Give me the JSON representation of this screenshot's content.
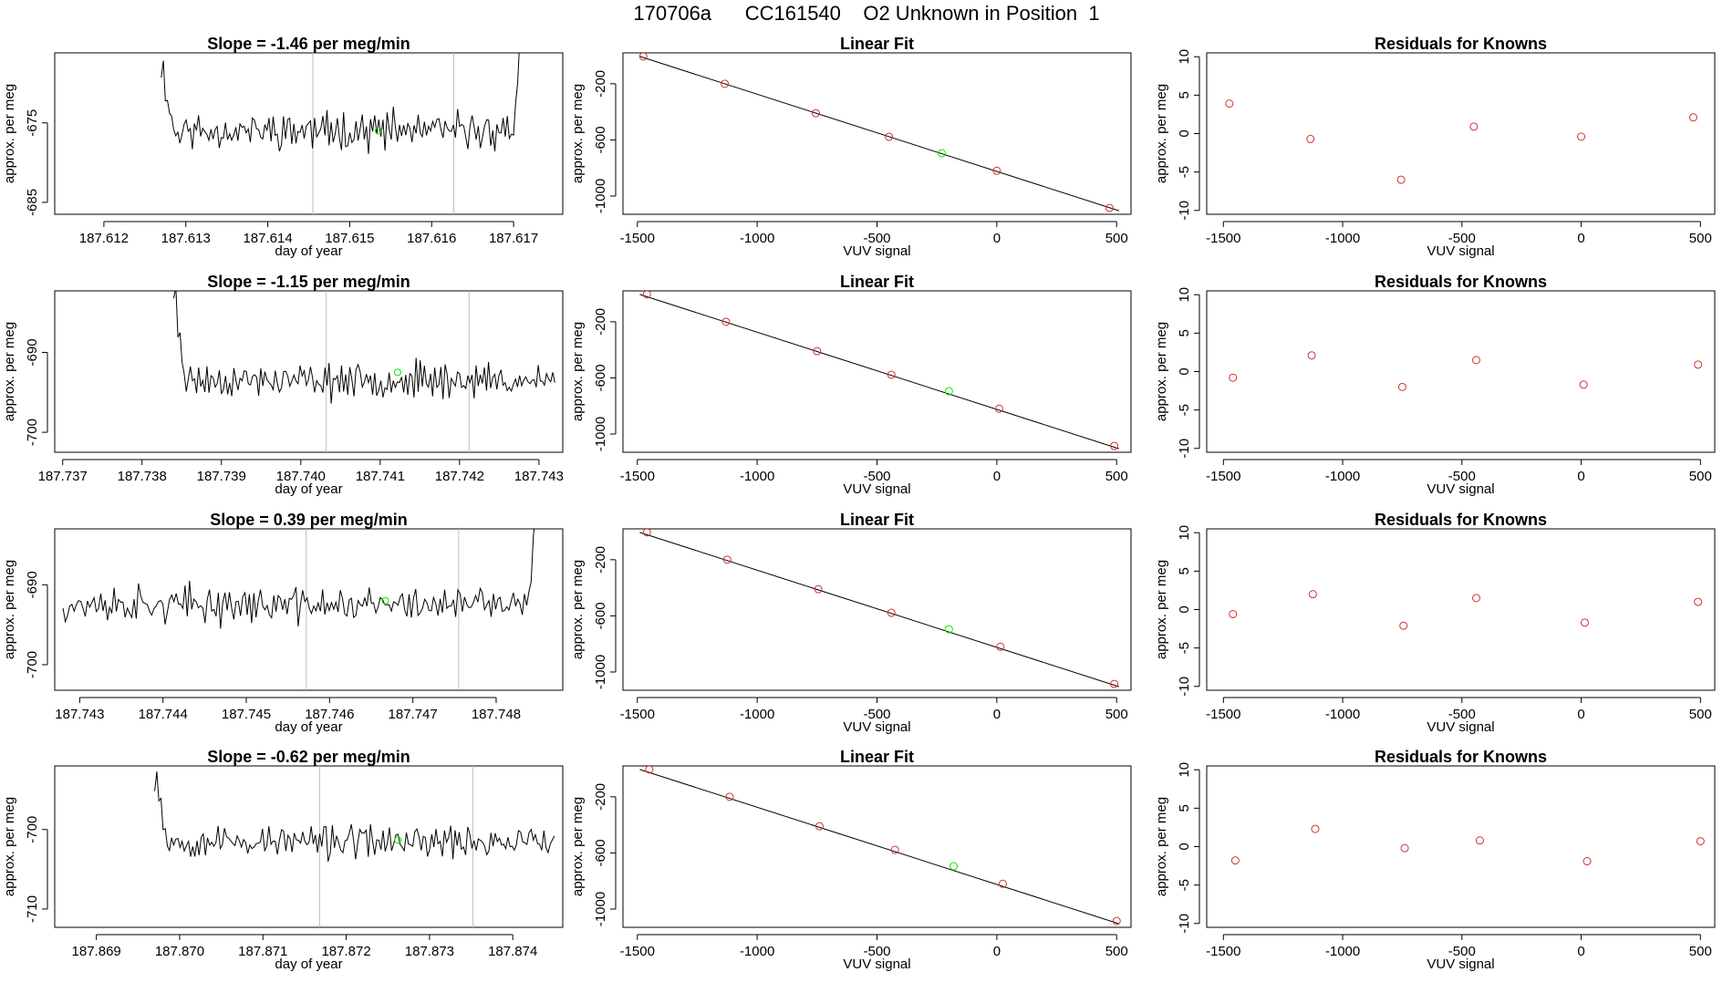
{
  "title": "170706a      CC161540    O2 Unknown in Position  1",
  "colors": {
    "known_point": "#cd3333",
    "unknown_point": "#00ee00",
    "cutoff_line": "#bebebe",
    "line": "#000000"
  },
  "chart_data": [
    {
      "type": "line",
      "title": "Slope =  -1.46  per meg/min",
      "xlabel": "day of year",
      "ylabel": "approx. per meg",
      "xlim": [
        187.6114,
        187.6176
      ],
      "ylim": [
        -686.5,
        -666.2
      ],
      "xticks": [
        187.612,
        187.613,
        187.614,
        187.615,
        187.616,
        187.617
      ],
      "xtick_labels": [
        "187.612",
        "187.613",
        "187.614",
        "187.615",
        "187.616",
        "187.617"
      ],
      "yticks": [
        -675,
        -685
      ],
      "ytick_labels": [
        "-675",
        "-685"
      ],
      "vlines": [
        187.61455,
        187.61627
      ],
      "unknown_marker": {
        "x": 187.61535,
        "y": -676.0
      },
      "series": [
        {
          "x_start": 187.6127,
          "x_end": 187.6171,
          "n": 175,
          "base": -676.0,
          "amp": 2.9,
          "seed": 11,
          "start_rise": 10,
          "end_rise": 14
        }
      ]
    },
    {
      "type": "scatter",
      "title": "Linear Fit",
      "xlabel": "VUV signal",
      "ylabel": "approx. per meg",
      "xlim": [
        -1560,
        560
      ],
      "ylim": [
        -1130,
        20
      ],
      "xticks": [
        -1500,
        -1000,
        -500,
        0,
        500
      ],
      "xtick_labels": [
        "-1500",
        "-1000",
        "-500",
        "0",
        "500"
      ],
      "yticks": [
        -200,
        -600,
        -1000
      ],
      "ytick_labels": [
        "-200",
        "-600",
        "-1000"
      ],
      "fit_line": {
        "x": [
          -1490,
          510
        ],
        "y": [
          -5,
          -1105
        ]
      },
      "knowns": {
        "x": [
          -1475,
          -1135,
          -755,
          -450,
          0,
          470
        ],
        "y": [
          -5,
          -200,
          -410,
          -578,
          -820,
          -1085
        ]
      },
      "unknown": {
        "x": -230,
        "y": -695
      }
    },
    {
      "type": "scatter",
      "title": "Residuals for Knowns",
      "xlabel": "VUV signal",
      "ylabel": "approx. per meg",
      "xlim": [
        -1570,
        560
      ],
      "ylim": [
        -10.5,
        10.5
      ],
      "xticks": [
        -1500,
        -1000,
        -500,
        0,
        500
      ],
      "xtick_labels": [
        "-1500",
        "-1000",
        "-500",
        "0",
        "500"
      ],
      "yticks": [
        10,
        5,
        0,
        -5,
        -10
      ],
      "ytick_labels": [
        "10",
        "5",
        "0",
        "-5",
        "-10"
      ],
      "residuals": {
        "x": [
          -1475,
          -1135,
          -755,
          -450,
          0,
          470
        ],
        "y": [
          3.9,
          -0.7,
          -6.0,
          0.9,
          -0.4,
          2.1
        ]
      }
    },
    {
      "type": "line",
      "title": "Slope =  -1.15  per meg/min",
      "xlabel": "day of year",
      "ylabel": "approx. per meg",
      "xlim": [
        187.7369,
        187.7433
      ],
      "ylim": [
        -702.5,
        -682.3
      ],
      "xticks": [
        187.737,
        187.738,
        187.739,
        187.74,
        187.741,
        187.742,
        187.743
      ],
      "xtick_labels": [
        "187.737",
        "187.738",
        "187.739",
        "187.740",
        "187.741",
        "187.742",
        "187.743"
      ],
      "yticks": [
        -690,
        -700
      ],
      "ytick_labels": [
        "-690",
        "-700"
      ],
      "vlines": [
        187.74032,
        187.74212
      ],
      "unknown_marker": {
        "x": 187.74122,
        "y": -692.5
      },
      "series": [
        {
          "x_start": 187.7384,
          "x_end": 187.7432,
          "n": 185,
          "base": -693.5,
          "amp": 2.5,
          "seed": 23,
          "start_rise": 12,
          "end_rise": 0
        }
      ]
    },
    {
      "type": "scatter",
      "title": "Linear Fit",
      "xlabel": "VUV signal",
      "ylabel": "approx. per meg",
      "xlim": [
        -1560,
        560
      ],
      "ylim": [
        -1130,
        20
      ],
      "xticks": [
        -1500,
        -1000,
        -500,
        0,
        500
      ],
      "xtick_labels": [
        "-1500",
        "-1000",
        "-500",
        "0",
        "500"
      ],
      "yticks": [
        -200,
        -600,
        -1000
      ],
      "ytick_labels": [
        "-200",
        "-600",
        "-1000"
      ],
      "fit_line": {
        "x": [
          -1490,
          510
        ],
        "y": [
          -5,
          -1105
        ]
      },
      "knowns": {
        "x": [
          -1460,
          -1130,
          -750,
          -440,
          10,
          490
        ],
        "y": [
          -5,
          -200,
          -410,
          -578,
          -820,
          -1085
        ]
      },
      "unknown": {
        "x": -200,
        "y": -695
      }
    },
    {
      "type": "scatter",
      "title": "Residuals for Knowns",
      "xlabel": "VUV signal",
      "ylabel": "approx. per meg",
      "xlim": [
        -1570,
        560
      ],
      "ylim": [
        -10.5,
        10.5
      ],
      "xticks": [
        -1500,
        -1000,
        -500,
        0,
        500
      ],
      "xtick_labels": [
        "-1500",
        "-1000",
        "-500",
        "0",
        "500"
      ],
      "yticks": [
        10,
        5,
        0,
        -5,
        -10
      ],
      "ytick_labels": [
        "10",
        "5",
        "0",
        "-5",
        "-10"
      ],
      "residuals": {
        "x": [
          -1460,
          -1130,
          -750,
          -440,
          10,
          490
        ],
        "y": [
          -0.8,
          2.1,
          -2.0,
          1.5,
          -1.7,
          0.9
        ]
      }
    },
    {
      "type": "line",
      "title": "Slope =  0.39  per meg/min",
      "xlabel": "day of year",
      "ylabel": "approx. per meg",
      "xlim": [
        187.7427,
        187.7488
      ],
      "ylim": [
        -703.2,
        -683.0
      ],
      "xticks": [
        187.743,
        187.744,
        187.745,
        187.746,
        187.747,
        187.748
      ],
      "xtick_labels": [
        "187.743",
        "187.744",
        "187.745",
        "187.746",
        "187.747",
        "187.748"
      ],
      "yticks": [
        -690,
        -700
      ],
      "ytick_labels": [
        "-690",
        "-700"
      ],
      "vlines": [
        187.74572,
        187.74755
      ],
      "unknown_marker": {
        "x": 187.74667,
        "y": -692.0
      },
      "series": [
        {
          "x_start": 187.7428,
          "x_end": 187.7485,
          "n": 215,
          "base": -692.5,
          "amp": 2.8,
          "seed": 37,
          "start_rise": 0,
          "end_rise": 14
        }
      ]
    },
    {
      "type": "scatter",
      "title": "Linear Fit",
      "xlabel": "VUV signal",
      "ylabel": "approx. per meg",
      "xlim": [
        -1560,
        560
      ],
      "ylim": [
        -1130,
        20
      ],
      "xticks": [
        -1500,
        -1000,
        -500,
        0,
        500
      ],
      "xtick_labels": [
        "-1500",
        "-1000",
        "-500",
        "0",
        "500"
      ],
      "yticks": [
        -200,
        -600,
        -1000
      ],
      "ytick_labels": [
        "-200",
        "-600",
        "-1000"
      ],
      "fit_line": {
        "x": [
          -1490,
          510
        ],
        "y": [
          -5,
          -1105
        ]
      },
      "knowns": {
        "x": [
          -1460,
          -1125,
          -745,
          -440,
          15,
          490
        ],
        "y": [
          -5,
          -200,
          -410,
          -578,
          -820,
          -1085
        ]
      },
      "unknown": {
        "x": -200,
        "y": -695
      }
    },
    {
      "type": "scatter",
      "title": "Residuals for Knowns",
      "xlabel": "VUV signal",
      "ylabel": "approx. per meg",
      "xlim": [
        -1570,
        560
      ],
      "ylim": [
        -10.5,
        10.5
      ],
      "xticks": [
        -1500,
        -1000,
        -500,
        0,
        500
      ],
      "xtick_labels": [
        "-1500",
        "-1000",
        "-500",
        "0",
        "500"
      ],
      "yticks": [
        10,
        5,
        0,
        -5,
        -10
      ],
      "ytick_labels": [
        "10",
        "5",
        "0",
        "-5",
        "-10"
      ],
      "residuals": {
        "x": [
          -1460,
          -1125,
          -745,
          -440,
          15,
          490
        ],
        "y": [
          -0.6,
          2.0,
          -2.1,
          1.5,
          -1.7,
          1.0
        ]
      }
    },
    {
      "type": "line",
      "title": "Slope =  -0.62  per meg/min",
      "xlabel": "day of year",
      "ylabel": "approx. per meg",
      "xlim": [
        187.8685,
        187.8746
      ],
      "ylim": [
        -712.3,
        -692.0
      ],
      "xticks": [
        187.869,
        187.87,
        187.871,
        187.872,
        187.873,
        187.874
      ],
      "xtick_labels": [
        "187.869",
        "187.870",
        "187.871",
        "187.872",
        "187.873",
        "187.874"
      ],
      "yticks": [
        -700,
        -710
      ],
      "ytick_labels": [
        "-700",
        "-710"
      ],
      "vlines": [
        187.87168,
        187.87352
      ],
      "unknown_marker": {
        "x": 187.87262,
        "y": -701.3
      },
      "series": [
        {
          "x_start": 187.8697,
          "x_end": 187.8745,
          "n": 190,
          "base": -701.5,
          "amp": 2.6,
          "seed": 53,
          "start_rise": 12,
          "end_rise": 0
        }
      ]
    },
    {
      "type": "scatter",
      "title": "Linear Fit",
      "xlabel": "VUV signal",
      "ylabel": "approx. per meg",
      "xlim": [
        -1560,
        560
      ],
      "ylim": [
        -1130,
        20
      ],
      "xticks": [
        -1500,
        -1000,
        -500,
        0,
        500
      ],
      "xtick_labels": [
        "-1500",
        "-1000",
        "-500",
        "0",
        "500"
      ],
      "yticks": [
        -200,
        -600,
        -1000
      ],
      "ytick_labels": [
        "-200",
        "-600",
        "-1000"
      ],
      "fit_line": {
        "x": [
          -1490,
          510
        ],
        "y": [
          -5,
          -1105
        ]
      },
      "knowns": {
        "x": [
          -1450,
          -1115,
          -740,
          -425,
          25,
          500
        ],
        "y": [
          -5,
          -200,
          -410,
          -578,
          -820,
          -1085
        ]
      },
      "unknown": {
        "x": -180,
        "y": -695
      }
    },
    {
      "type": "scatter",
      "title": "Residuals for Knowns",
      "xlabel": "VUV signal",
      "ylabel": "approx. per meg",
      "xlim": [
        -1570,
        560
      ],
      "ylim": [
        -10.5,
        10.5
      ],
      "xticks": [
        -1500,
        -1000,
        -500,
        0,
        500
      ],
      "xtick_labels": [
        "-1500",
        "-1000",
        "-500",
        "0",
        "500"
      ],
      "yticks": [
        10,
        5,
        0,
        -5,
        -10
      ],
      "ytick_labels": [
        "10",
        "5",
        "0",
        "-5",
        "-10"
      ],
      "residuals": {
        "x": [
          -1450,
          -1115,
          -740,
          -425,
          25,
          500
        ],
        "y": [
          -1.8,
          2.3,
          -0.2,
          0.8,
          -1.9,
          0.7
        ]
      }
    }
  ]
}
